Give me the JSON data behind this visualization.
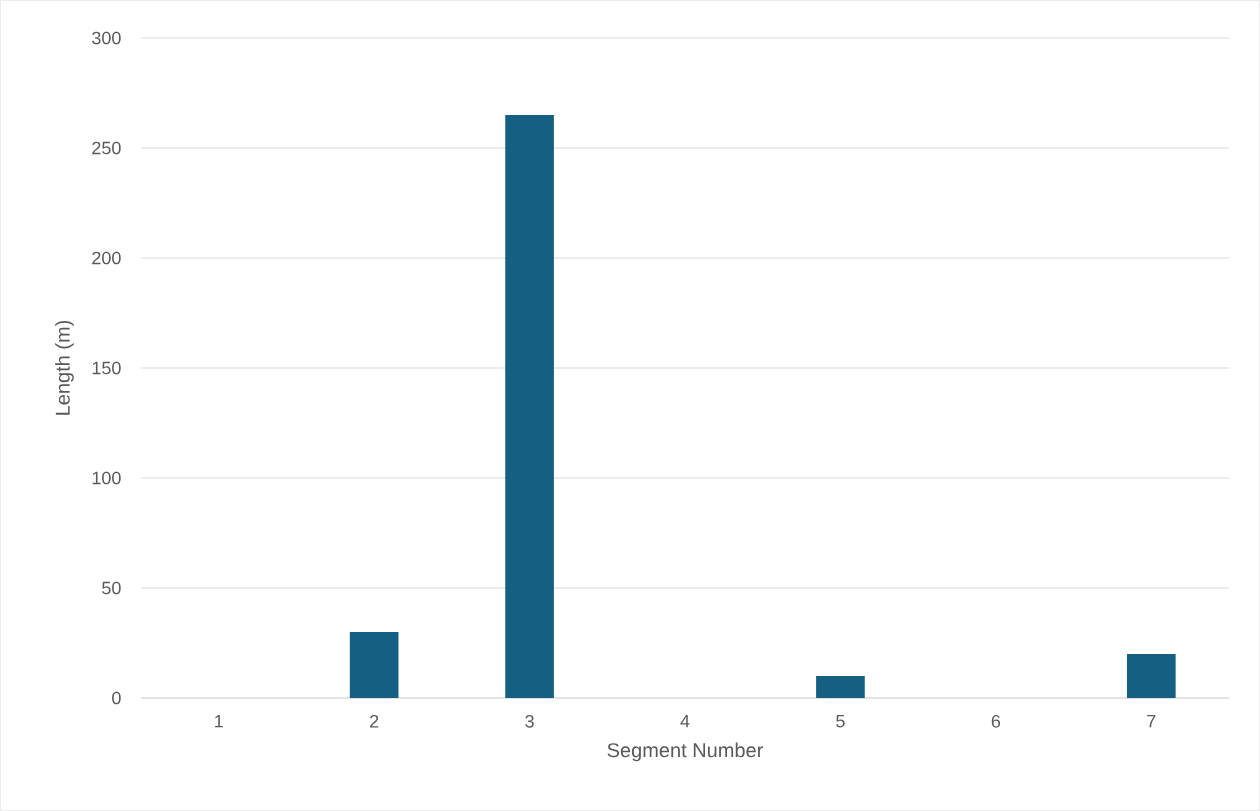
{
  "chart_data": {
    "type": "bar",
    "xlabel": "Segment Number",
    "ylabel": "Length (m)",
    "categories": [
      "1",
      "2",
      "3",
      "4",
      "5",
      "6",
      "7"
    ],
    "values": [
      0,
      30,
      265,
      0,
      10,
      0,
      20
    ],
    "color": "#156082",
    "ylim": [
      0,
      300
    ],
    "yticks": [
      0,
      50,
      100,
      150,
      200,
      250,
      300
    ],
    "grid": "y"
  }
}
